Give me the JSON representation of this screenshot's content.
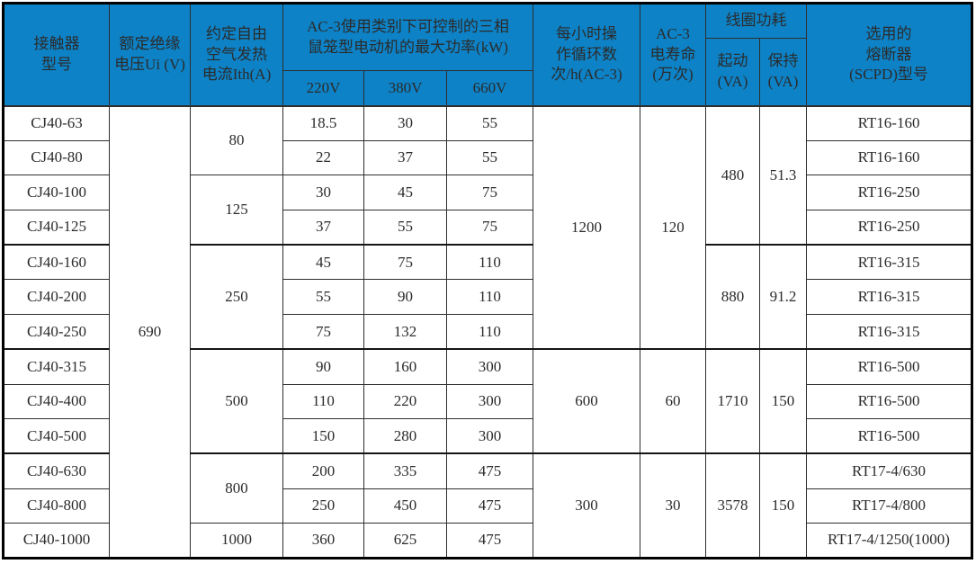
{
  "colors": {
    "header_bg": "#0d82c6",
    "header_text": "#ffffff",
    "grid_line": "#2e2e2e",
    "outer_border": "#000000",
    "body_text": "#2b2b2b"
  },
  "table": {
    "header_rows": [
      {
        "cls": "h-a",
        "cells": [
          {
            "t": "接触器\n型号",
            "rs": 3,
            "n": "header-contactor-model"
          },
          {
            "t": "额定绝缘\n电压Ui (V)",
            "rs": 3,
            "n": "header-rated-insulation-voltage"
          },
          {
            "t": "约定自由\n空气发热\n电流Ith(A)",
            "rs": 3,
            "n": "header-free-air-thermal-current"
          },
          {
            "t": "AC-3使用类别下可控制的三相\n鼠笼型电动机的最大功率(kW)",
            "rs": 2,
            "cs": 3,
            "n": "header-ac3-max-power-group"
          },
          {
            "t": "每小时操\n作循环数\n次/h(AC-3)",
            "rs": 3,
            "n": "header-operating-cycles-per-hour"
          },
          {
            "t": "AC-3\n电寿命\n(万次)",
            "rs": 3,
            "n": "header-ac3-electrical-life"
          },
          {
            "t": "线圈功耗",
            "cs": 2,
            "n": "header-coil-power-group"
          },
          {
            "t": "选用的\n熔断器\n(SCPD)型号",
            "rs": 3,
            "n": "header-fuse-scpd-type"
          }
        ]
      },
      {
        "cls": "h-b",
        "cells": [
          {
            "t": "起动\n(VA)",
            "rs": 2,
            "n": "header-coil-start-va"
          },
          {
            "t": "保持\n(VA)",
            "rs": 2,
            "n": "header-coil-hold-va"
          }
        ]
      },
      {
        "cls": "h-c",
        "cells": [
          {
            "t": "220V",
            "n": "header-220v"
          },
          {
            "t": "380V",
            "n": "header-380v"
          },
          {
            "t": "660V",
            "n": "header-660v"
          }
        ]
      }
    ],
    "body_rows": [
      {
        "cells": [
          {
            "t": "CJ40-63",
            "n": "cell-model"
          },
          {
            "t": "690",
            "rs": 13,
            "n": "cell-rated-insulation-voltage"
          },
          {
            "t": "80",
            "rs": 2,
            "n": "cell-thermal-current"
          },
          {
            "t": "18.5",
            "n": "cell-power-220v"
          },
          {
            "t": "30",
            "n": "cell-power-380v"
          },
          {
            "t": "55",
            "n": "cell-power-660v"
          },
          {
            "t": "1200",
            "rs": 7,
            "n": "cell-cycles-per-hour"
          },
          {
            "t": "120",
            "rs": 7,
            "n": "cell-electrical-life"
          },
          {
            "t": "480",
            "rs": 4,
            "n": "cell-coil-start-va"
          },
          {
            "t": "51.3",
            "rs": 4,
            "n": "cell-coil-hold-va"
          },
          {
            "t": "RT16-160",
            "n": "cell-fuse-type"
          }
        ]
      },
      {
        "cells": [
          {
            "t": "CJ40-80",
            "n": "cell-model"
          },
          {
            "t": "22",
            "n": "cell-power-220v"
          },
          {
            "t": "37",
            "n": "cell-power-380v"
          },
          {
            "t": "55",
            "n": "cell-power-660v"
          },
          {
            "t": "RT16-160",
            "n": "cell-fuse-type"
          }
        ]
      },
      {
        "cells": [
          {
            "t": "CJ40-100",
            "n": "cell-model"
          },
          {
            "t": "125",
            "rs": 2,
            "n": "cell-thermal-current"
          },
          {
            "t": "30",
            "n": "cell-power-220v"
          },
          {
            "t": "45",
            "n": "cell-power-380v"
          },
          {
            "t": "75",
            "n": "cell-power-660v"
          },
          {
            "t": "RT16-250",
            "n": "cell-fuse-type"
          }
        ]
      },
      {
        "cells": [
          {
            "t": "CJ40-125",
            "n": "cell-model"
          },
          {
            "t": "37",
            "n": "cell-power-220v"
          },
          {
            "t": "55",
            "n": "cell-power-380v"
          },
          {
            "t": "75",
            "n": "cell-power-660v"
          },
          {
            "t": "RT16-250",
            "n": "cell-fuse-type"
          }
        ]
      },
      {
        "thick": true,
        "cells": [
          {
            "t": "CJ40-160",
            "n": "cell-model"
          },
          {
            "t": "250",
            "rs": 3,
            "n": "cell-thermal-current"
          },
          {
            "t": "45",
            "n": "cell-power-220v"
          },
          {
            "t": "75",
            "n": "cell-power-380v"
          },
          {
            "t": "110",
            "n": "cell-power-660v"
          },
          {
            "t": "880",
            "rs": 3,
            "n": "cell-coil-start-va"
          },
          {
            "t": "91.2",
            "rs": 3,
            "n": "cell-coil-hold-va"
          },
          {
            "t": "RT16-315",
            "n": "cell-fuse-type"
          }
        ]
      },
      {
        "cells": [
          {
            "t": "CJ40-200",
            "n": "cell-model"
          },
          {
            "t": "55",
            "n": "cell-power-220v"
          },
          {
            "t": "90",
            "n": "cell-power-380v"
          },
          {
            "t": "110",
            "n": "cell-power-660v"
          },
          {
            "t": "RT16-315",
            "n": "cell-fuse-type"
          }
        ]
      },
      {
        "cells": [
          {
            "t": "CJ40-250",
            "n": "cell-model"
          },
          {
            "t": "75",
            "n": "cell-power-220v"
          },
          {
            "t": "132",
            "n": "cell-power-380v"
          },
          {
            "t": "110",
            "n": "cell-power-660v"
          },
          {
            "t": "RT16-315",
            "n": "cell-fuse-type"
          }
        ]
      },
      {
        "thick": true,
        "cells": [
          {
            "t": "CJ40-315",
            "n": "cell-model"
          },
          {
            "t": "500",
            "rs": 3,
            "n": "cell-thermal-current"
          },
          {
            "t": "90",
            "n": "cell-power-220v"
          },
          {
            "t": "160",
            "n": "cell-power-380v"
          },
          {
            "t": "300",
            "n": "cell-power-660v"
          },
          {
            "t": "600",
            "rs": 3,
            "n": "cell-cycles-per-hour"
          },
          {
            "t": "60",
            "rs": 3,
            "n": "cell-electrical-life"
          },
          {
            "t": "1710",
            "rs": 3,
            "n": "cell-coil-start-va"
          },
          {
            "t": "150",
            "rs": 3,
            "n": "cell-coil-hold-va"
          },
          {
            "t": "RT16-500",
            "n": "cell-fuse-type"
          }
        ]
      },
      {
        "cells": [
          {
            "t": "CJ40-400",
            "n": "cell-model"
          },
          {
            "t": "110",
            "n": "cell-power-220v"
          },
          {
            "t": "220",
            "n": "cell-power-380v"
          },
          {
            "t": "300",
            "n": "cell-power-660v"
          },
          {
            "t": "RT16-500",
            "n": "cell-fuse-type"
          }
        ]
      },
      {
        "cells": [
          {
            "t": "CJ40-500",
            "n": "cell-model"
          },
          {
            "t": "150",
            "n": "cell-power-220v"
          },
          {
            "t": "280",
            "n": "cell-power-380v"
          },
          {
            "t": "300",
            "n": "cell-power-660v"
          },
          {
            "t": "RT16-500",
            "n": "cell-fuse-type"
          }
        ]
      },
      {
        "thick": true,
        "cells": [
          {
            "t": "CJ40-630",
            "n": "cell-model"
          },
          {
            "t": "800",
            "rs": 2,
            "n": "cell-thermal-current"
          },
          {
            "t": "200",
            "n": "cell-power-220v"
          },
          {
            "t": "335",
            "n": "cell-power-380v"
          },
          {
            "t": "475",
            "n": "cell-power-660v"
          },
          {
            "t": "300",
            "rs": 3,
            "n": "cell-cycles-per-hour"
          },
          {
            "t": "30",
            "rs": 3,
            "n": "cell-electrical-life"
          },
          {
            "t": "3578",
            "rs": 3,
            "n": "cell-coil-start-va"
          },
          {
            "t": "150",
            "rs": 3,
            "n": "cell-coil-hold-va"
          },
          {
            "t": "RT17-4/630",
            "n": "cell-fuse-type"
          }
        ]
      },
      {
        "cells": [
          {
            "t": "CJ40-800",
            "n": "cell-model"
          },
          {
            "t": "250",
            "n": "cell-power-220v"
          },
          {
            "t": "450",
            "n": "cell-power-380v"
          },
          {
            "t": "475",
            "n": "cell-power-660v"
          },
          {
            "t": "RT17-4/800",
            "n": "cell-fuse-type"
          }
        ]
      },
      {
        "cells": [
          {
            "t": "CJ40-1000",
            "n": "cell-model"
          },
          {
            "t": "1000",
            "n": "cell-thermal-current"
          },
          {
            "t": "360",
            "n": "cell-power-220v"
          },
          {
            "t": "625",
            "n": "cell-power-380v"
          },
          {
            "t": "475",
            "n": "cell-power-660v"
          },
          {
            "t": "RT17-4/1250(1000)",
            "n": "cell-fuse-type"
          }
        ]
      }
    ]
  }
}
